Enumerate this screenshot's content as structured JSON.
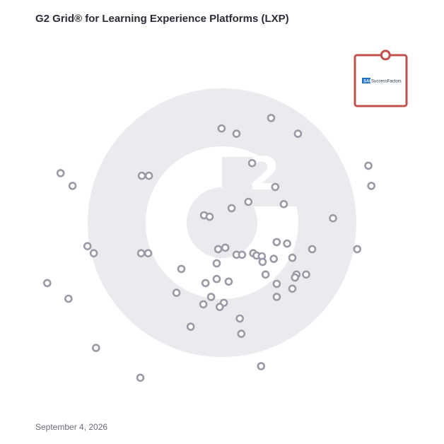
{
  "header": {
    "title": "G2 Grid® for Learning Experience Platforms (LXP)"
  },
  "footer": {
    "date": "September 4, 2026"
  },
  "colors": {
    "frame_top_left": "#5b4fc4",
    "frame_top_right": "#f05a30",
    "frame_bottom_left": "#2aa3d6",
    "frame_bottom_right": "#7a3aa8",
    "dot_stroke": "#9a9aa6",
    "watermark": "#ebebef",
    "highlight": "#c0504d"
  },
  "chart_data": {
    "type": "scatter",
    "title": "",
    "xlabel": "",
    "ylabel": "",
    "xlim": [
      0,
      100
    ],
    "ylim": [
      0,
      100
    ],
    "quadrant_split": {
      "x": 50,
      "y": 50
    },
    "grid": false,
    "legend": "none",
    "highlighted": {
      "name": "SuccessFactors",
      "x": 93.6,
      "y": 94.9
    },
    "points": [
      {
        "x": 62.9,
        "y": 78.0
      },
      {
        "x": 49.6,
        "y": 75.2
      },
      {
        "x": 53.6,
        "y": 73.8
      },
      {
        "x": 70.1,
        "y": 73.8
      },
      {
        "x": 6.4,
        "y": 63.2
      },
      {
        "x": 28.2,
        "y": 62.5
      },
      {
        "x": 30.1,
        "y": 62.5
      },
      {
        "x": 9.6,
        "y": 59.8
      },
      {
        "x": 57.8,
        "y": 65.9
      },
      {
        "x": 64.0,
        "y": 59.5
      },
      {
        "x": 89.0,
        "y": 65.2
      },
      {
        "x": 89.8,
        "y": 59.8
      },
      {
        "x": 56.8,
        "y": 55.5
      },
      {
        "x": 66.3,
        "y": 54.9
      },
      {
        "x": 52.3,
        "y": 53.8
      },
      {
        "x": 44.9,
        "y": 51.9
      },
      {
        "x": 46.4,
        "y": 51.5
      },
      {
        "x": 79.5,
        "y": 51.1
      },
      {
        "x": 13.6,
        "y": 43.6
      },
      {
        "x": 15.3,
        "y": 41.7
      },
      {
        "x": 28.0,
        "y": 41.7
      },
      {
        "x": 29.9,
        "y": 41.7
      },
      {
        "x": 48.7,
        "y": 42.8
      },
      {
        "x": 50.6,
        "y": 43.2
      },
      {
        "x": 64.4,
        "y": 44.7
      },
      {
        "x": 67.2,
        "y": 44.3
      },
      {
        "x": 73.9,
        "y": 42.8
      },
      {
        "x": 86.0,
        "y": 42.8
      },
      {
        "x": 53.6,
        "y": 41.3
      },
      {
        "x": 55.1,
        "y": 41.3
      },
      {
        "x": 58.1,
        "y": 41.7
      },
      {
        "x": 59.0,
        "y": 41.1
      },
      {
        "x": 60.4,
        "y": 40.9
      },
      {
        "x": 63.6,
        "y": 40.2
      },
      {
        "x": 68.6,
        "y": 40.5
      },
      {
        "x": 60.6,
        "y": 39.4
      },
      {
        "x": 48.3,
        "y": 39.0
      },
      {
        "x": 38.8,
        "y": 37.5
      },
      {
        "x": 61.4,
        "y": 36.0
      },
      {
        "x": 69.7,
        "y": 36.0
      },
      {
        "x": 72.3,
        "y": 36.0
      },
      {
        "x": 69.3,
        "y": 35.2
      },
      {
        "x": 2.8,
        "y": 33.7
      },
      {
        "x": 48.3,
        "y": 34.8
      },
      {
        "x": 45.3,
        "y": 33.7
      },
      {
        "x": 51.5,
        "y": 34.1
      },
      {
        "x": 64.4,
        "y": 33.5
      },
      {
        "x": 68.6,
        "y": 32.2
      },
      {
        "x": 37.5,
        "y": 31.1
      },
      {
        "x": 46.8,
        "y": 30.0
      },
      {
        "x": 64.4,
        "y": 30.0
      },
      {
        "x": 8.5,
        "y": 29.5
      },
      {
        "x": 44.7,
        "y": 28.0
      },
      {
        "x": 50.2,
        "y": 28.4
      },
      {
        "x": 49.1,
        "y": 27.3
      },
      {
        "x": 54.5,
        "y": 24.2
      },
      {
        "x": 41.3,
        "y": 22.0
      },
      {
        "x": 54.9,
        "y": 20.1
      },
      {
        "x": 15.9,
        "y": 16.3
      },
      {
        "x": 60.2,
        "y": 11.4
      },
      {
        "x": 27.8,
        "y": 8.3
      }
    ]
  }
}
